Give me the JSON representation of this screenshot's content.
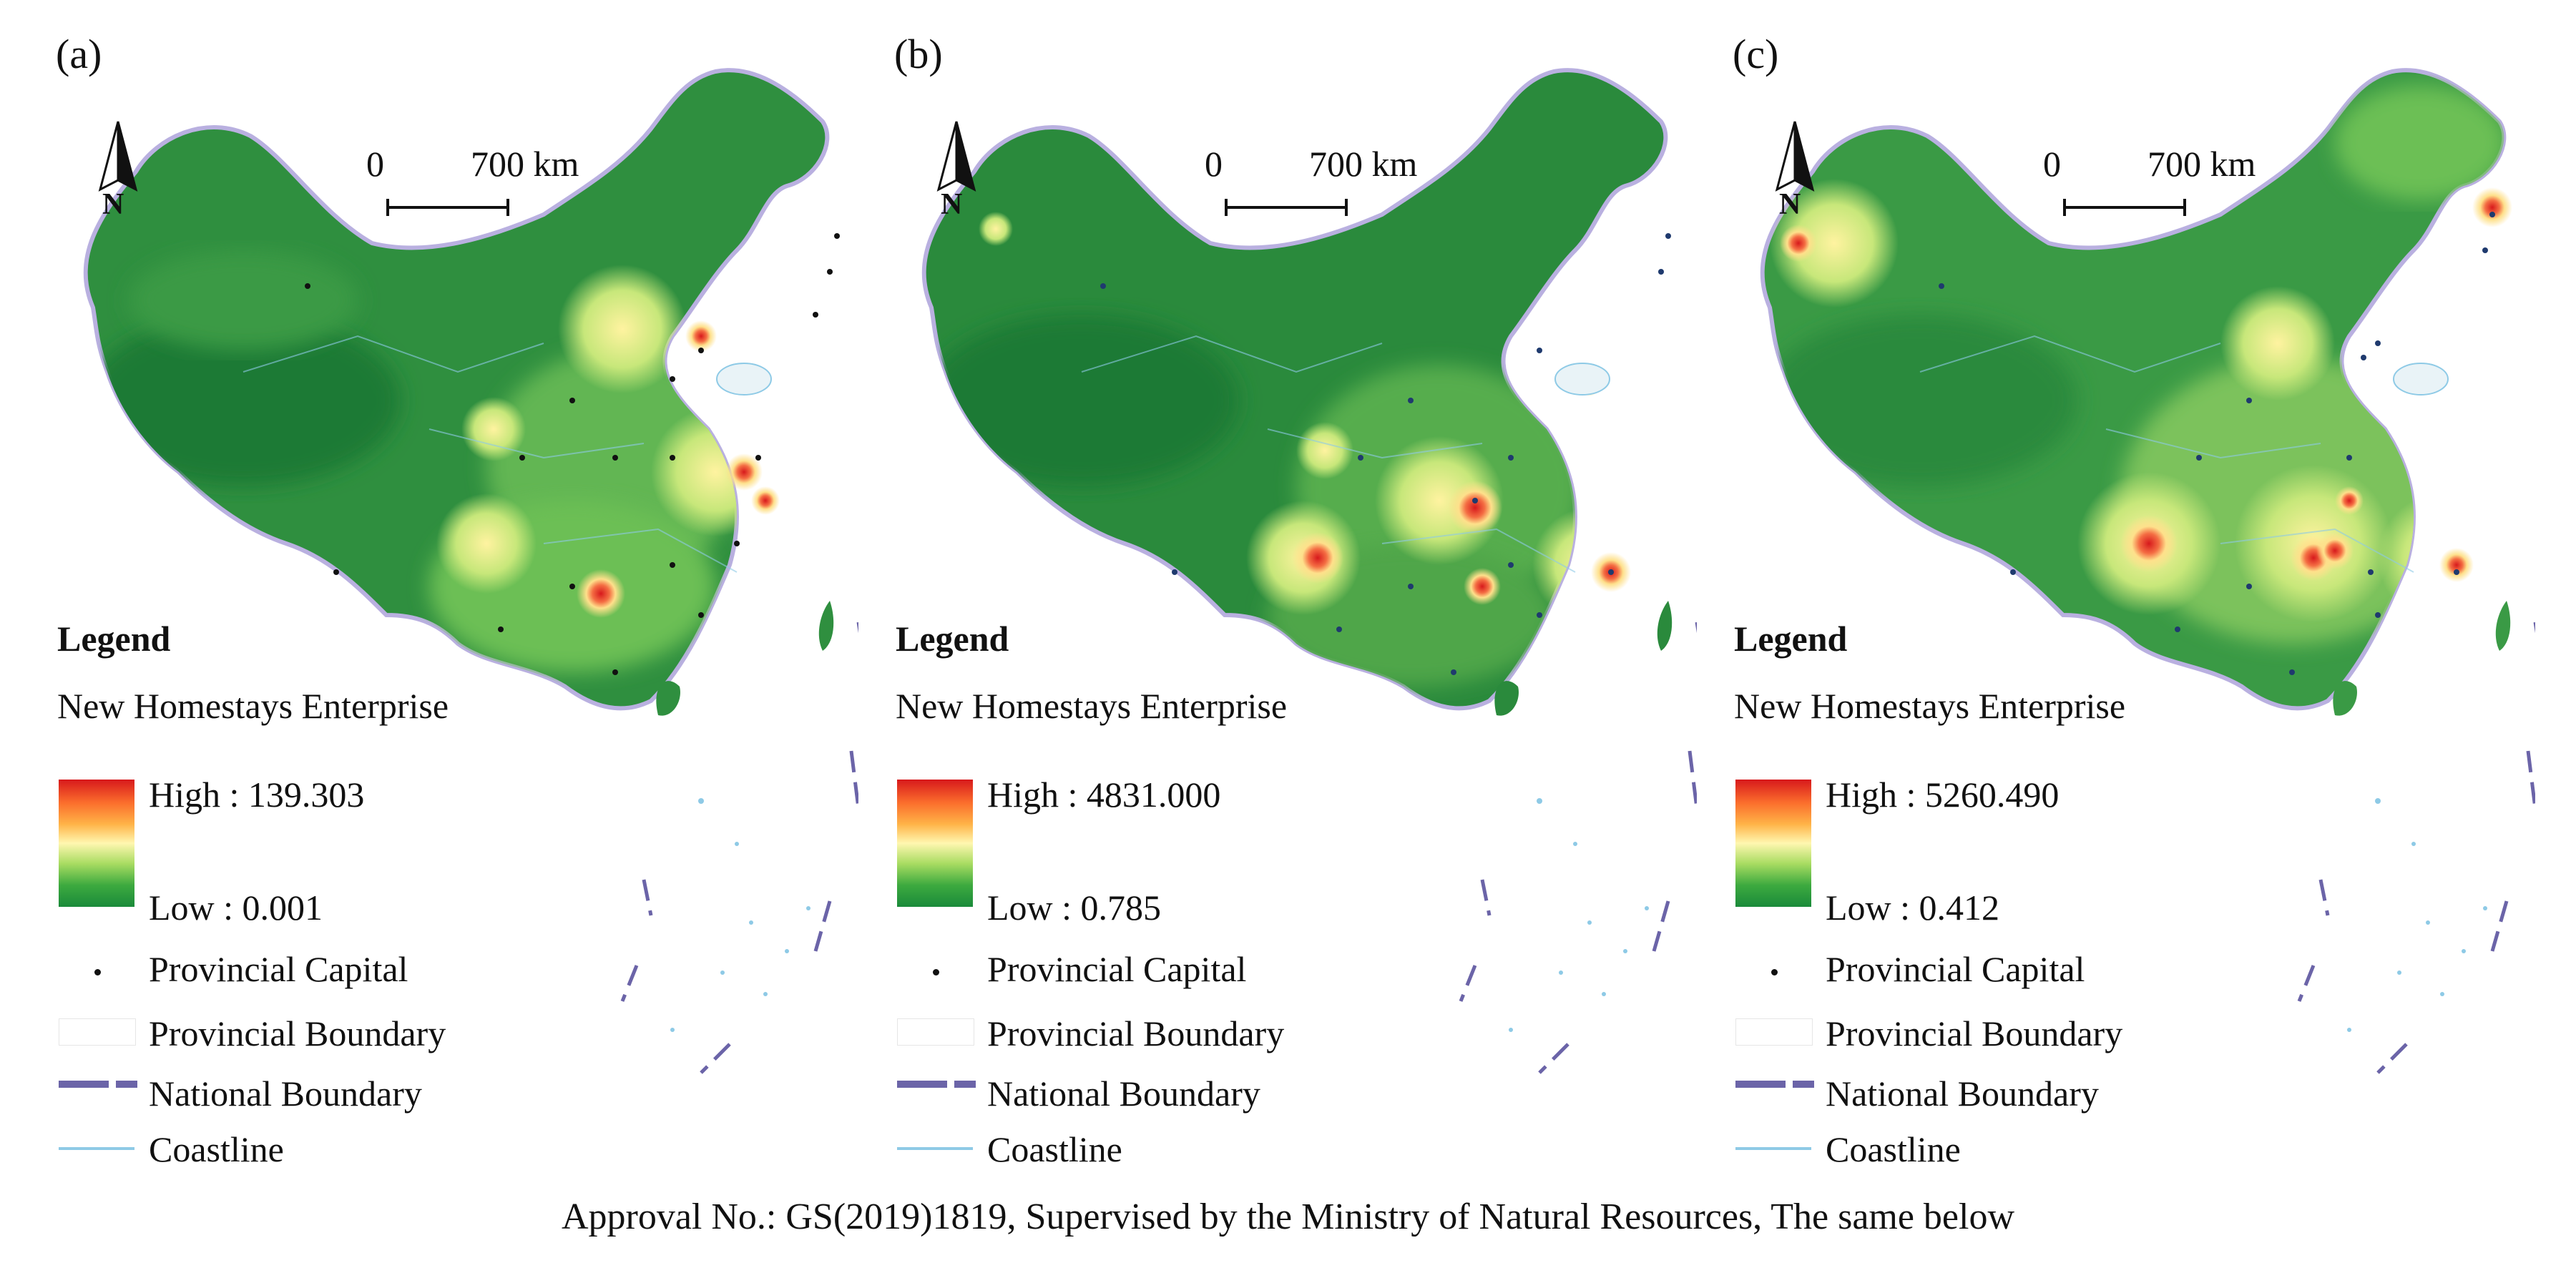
{
  "figure": {
    "caption": "Approval No.: GS(2019)1819, Supervised by the Ministry of Natural Resources, The same below"
  },
  "common": {
    "north_label": "N",
    "scale_zero": "0",
    "scale_distance": "700 km",
    "legend_title": "Legend",
    "layer_name": "New Homestays Enterprise",
    "provincial_capital": "Provincial Capital",
    "provincial_boundary": "Provincial Boundary",
    "national_boundary": "National Boundary",
    "coastline": "Coastline"
  },
  "panels": [
    {
      "label": "(a)",
      "high": "High : 139.303",
      "low": "Low : 0.001"
    },
    {
      "label": "(b)",
      "high": "High : 4831.000",
      "low": "Low : 0.785"
    },
    {
      "label": "(c)",
      "high": "High : 5260.490",
      "low": "Low : 0.412"
    }
  ],
  "colors": {
    "high": "#d7191c",
    "mid": "#fff7b0",
    "low": "#1a8a3a",
    "national_boundary": "#6b64a8",
    "coastline": "#8ecae6",
    "capital_dot": "#111111",
    "capital_dot_bc": "#1f3a6e"
  }
}
